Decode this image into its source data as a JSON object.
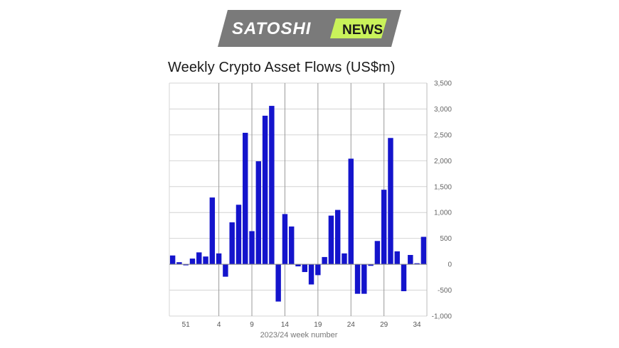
{
  "header": {
    "brand_left": "SATOSHI",
    "brand_right": "NEWS",
    "brand_dark": "#7a7a7a",
    "brand_accent": "#c9f25a"
  },
  "chart_data": {
    "type": "bar",
    "title": "Weekly Crypto Asset Flows (US$m)",
    "xlabel": "2023/24 week number",
    "ylabel": "",
    "ylim": [
      -1000,
      3500
    ],
    "yticks": [
      -1000,
      -500,
      0,
      500,
      1000,
      1500,
      2000,
      2500,
      3000,
      3500
    ],
    "ytick_labels": [
      "-1,000",
      "-500",
      "0",
      "500",
      "1,000",
      "1,500",
      "2,000",
      "2,500",
      "3,000",
      "3,500"
    ],
    "x_tick_labels": [
      "51",
      "4",
      "9",
      "14",
      "19",
      "24",
      "29",
      "34"
    ],
    "x_tick_positions": [
      2,
      7,
      12,
      17,
      22,
      27,
      32,
      37
    ],
    "bar_color": "#1414cc",
    "grid": true,
    "values": [
      170,
      40,
      -20,
      110,
      230,
      150,
      1290,
      210,
      -240,
      810,
      1150,
      2540,
      640,
      1990,
      2870,
      3060,
      -720,
      970,
      730,
      -40,
      -150,
      -390,
      -210,
      140,
      940,
      1050,
      210,
      2040,
      -570,
      -570,
      -30,
      450,
      1440,
      2440,
      250,
      -520,
      180,
      20,
      530
    ]
  }
}
